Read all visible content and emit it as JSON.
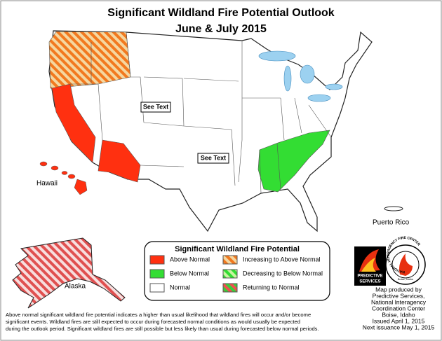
{
  "header": {
    "title": "Significant Wildland Fire Potential Outlook",
    "subtitle": "June & July 2015"
  },
  "map_labels": {
    "see_text_1": "See Text",
    "see_text_2": "See Text",
    "hawaii": "Hawaii",
    "alaska": "Alaska",
    "puerto_rico": "Puerto Rico"
  },
  "legend": {
    "title": "Significant Wildland Fire Potential",
    "items": [
      {
        "label": "Above Normal"
      },
      {
        "label": "Below Normal"
      },
      {
        "label": "Normal"
      },
      {
        "label": "Increasing to Above Normal"
      },
      {
        "label": "Decreasing to Below Normal"
      },
      {
        "label": "Returning to Normal"
      }
    ]
  },
  "logos": {
    "predictive": [
      "PREDICTIVE",
      "SERVICES"
    ],
    "nifc": "NATIONAL INTERAGENCY FIRE CENTER",
    "nifc_city": "Boise, Idaho"
  },
  "credits": [
    "Map produced by",
    "Predictive Services,",
    "National Interagency",
    "Coordination Center",
    "Boise, Idaho",
    "Issued April 1, 2015",
    "Next issuance May 1, 2015"
  ],
  "footnote": [
    "Above normal significant wildland fire potential indicates a higher than usual likelihood that wildland fires will occur and/or become",
    "significant events.  Wildland fires are still expected to occur during forecasted normal conditions as would usually be expected",
    "during the outlook period.  Significant wildland fires are still possible but less likely than usual during forecasted below normal periods."
  ]
}
